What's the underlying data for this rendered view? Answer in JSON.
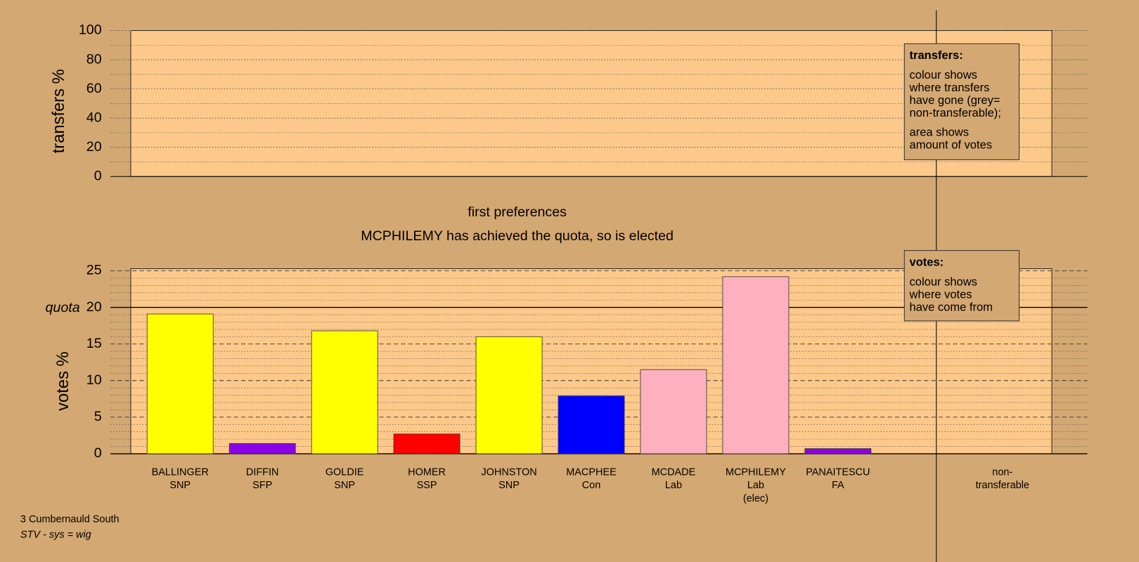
{
  "chart_data": [
    {
      "type": "bar",
      "y_label": "transfers %",
      "ylim": [
        0,
        100
      ],
      "yticks": [
        0,
        20,
        40,
        60,
        80,
        100
      ],
      "minor_divisions": 2,
      "legend": {
        "title": "transfers:",
        "paragraphs": [
          [
            "colour shows",
            "where transfers",
            "have gone (grey=",
            "non-transferable);"
          ],
          [
            "area shows",
            "amount of votes"
          ]
        ]
      },
      "categories": [],
      "values": []
    },
    {
      "type": "bar",
      "title": "first preferences",
      "subtitle": "MCPHILEMY has achieved the quota, so is elected",
      "y_label": "votes %",
      "ylim": [
        0,
        25
      ],
      "yticks": [
        0,
        5,
        10,
        15,
        20,
        25
      ],
      "minor_divisions": 5,
      "quota": 20,
      "quota_label": "quota",
      "legend": {
        "title": "votes:",
        "paragraphs": [
          [
            "colour shows",
            "where votes",
            "have come from"
          ]
        ]
      },
      "categories": [
        [
          "BALLINGER",
          "SNP"
        ],
        [
          "DIFFIN",
          "SFP"
        ],
        [
          "GOLDIE",
          "SNP"
        ],
        [
          "HOMER",
          "SSP"
        ],
        [
          "JOHNSTON",
          "SNP"
        ],
        [
          "MACPHEE",
          "Con"
        ],
        [
          "MCDADE",
          "Lab"
        ],
        [
          "MCPHILEMY",
          "Lab",
          "(elec)"
        ],
        [
          "PANAITESCU",
          "FA"
        ],
        [
          "non-",
          "transferable"
        ]
      ],
      "values": [
        19.1,
        1.4,
        16.8,
        2.7,
        16.0,
        7.9,
        11.5,
        24.2,
        0.7,
        null
      ],
      "colors": [
        "#ffff00",
        "#8a00e6",
        "#ffff00",
        "#ff0000",
        "#ffff00",
        "#0000ff",
        "#ffb0c0",
        "#ffb0c0",
        "#8a00e6",
        null
      ]
    }
  ],
  "footer": {
    "ward": "3 Cumbernauld South",
    "system": "STV - sys = wig"
  }
}
